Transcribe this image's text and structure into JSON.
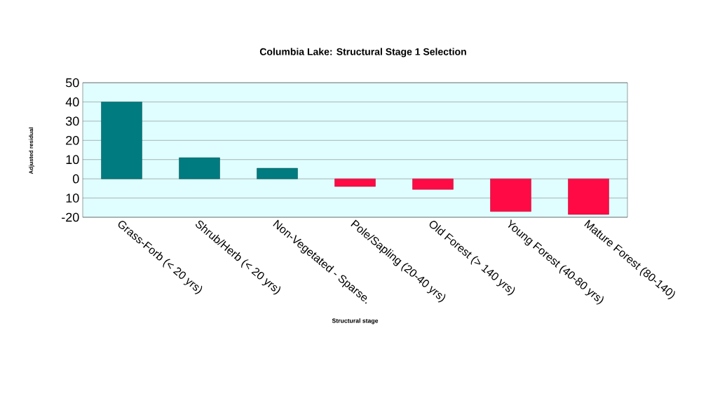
{
  "chart_data": {
    "type": "bar",
    "title": "Columbia Lake: Structural Stage 1 Selection",
    "xlabel": "Structural stage",
    "ylabel": "Adjusted residual",
    "categories": [
      "Grass-Forb (< 20 yrs)",
      "Shrub/Herb (< 20 yrs)",
      "Non-Vegetated - Sparse.",
      "Pole/Sapling (20-40 yrs)",
      "Old Forest (> 140 yrs)",
      "Young Forest (40-80 yrs)",
      "Mature Forest (80-140)"
    ],
    "values": [
      40,
      11,
      5.5,
      -4,
      -5.5,
      -17,
      -18.5
    ],
    "colors": [
      "#007b7f",
      "#007b7f",
      "#007b7f",
      "#ff0a45",
      "#ff0a45",
      "#ff0a45",
      "#ff0a45"
    ],
    "ylim": [
      -20,
      50
    ],
    "yticks": [
      -20,
      {
        "value": -10,
        "label": "10"
      },
      0,
      10,
      20,
      30,
      40,
      50
    ],
    "grid": "y"
  }
}
